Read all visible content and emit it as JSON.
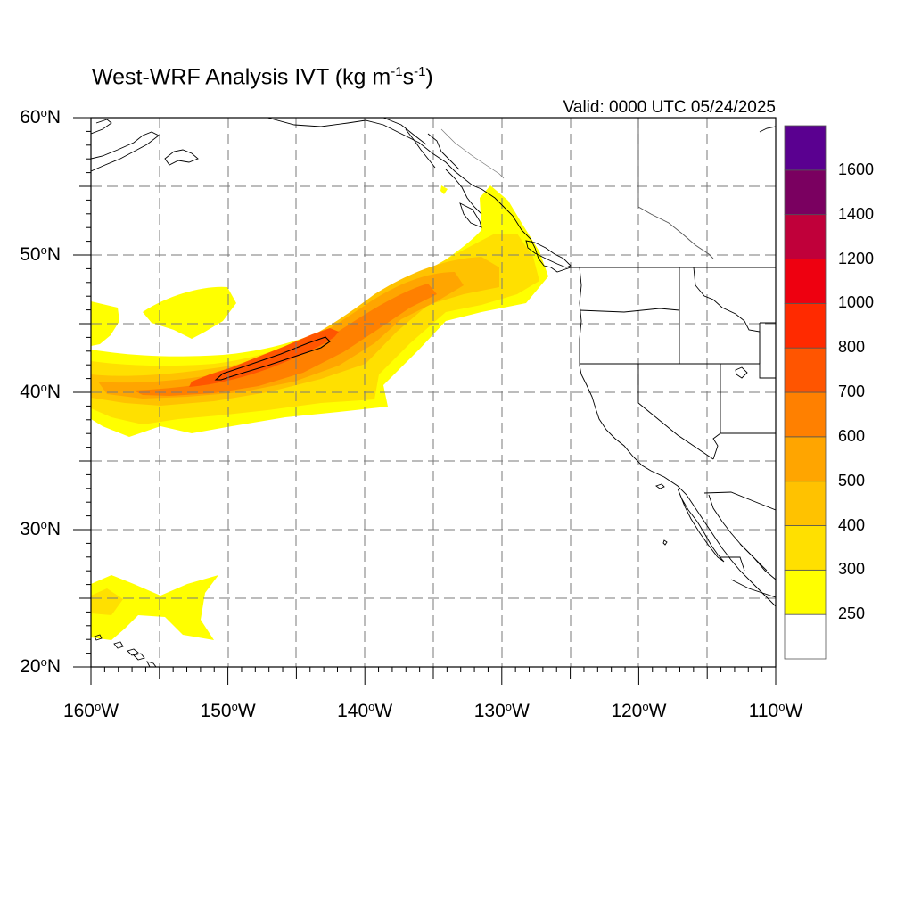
{
  "title": {
    "prefix": "West-WRF Analysis IVT (kg m",
    "exp1": "-1",
    "mid": "s",
    "exp2": "-1",
    "suffix": ")"
  },
  "valid_text": "Valid: 0000 UTC 05/24/2025",
  "degree_symbol": "o",
  "map": {
    "lon_range": [
      -160,
      -110
    ],
    "lat_range": [
      20,
      60
    ],
    "grid_lines": "dashed, every 5 degrees",
    "lat_labels": [
      {
        "value": 60,
        "text": "60",
        "hemi": "N"
      },
      {
        "value": 50,
        "text": "50",
        "hemi": "N"
      },
      {
        "value": 40,
        "text": "40",
        "hemi": "N"
      },
      {
        "value": 30,
        "text": "30",
        "hemi": "N"
      },
      {
        "value": 20,
        "text": "20",
        "hemi": "N"
      }
    ],
    "lon_labels": [
      {
        "value": -160,
        "text": "160",
        "hemi": "W"
      },
      {
        "value": -150,
        "text": "150",
        "hemi": "W"
      },
      {
        "value": -140,
        "text": "140",
        "hemi": "W"
      },
      {
        "value": -130,
        "text": "130",
        "hemi": "W"
      },
      {
        "value": -120,
        "text": "120",
        "hemi": "W"
      },
      {
        "value": -110,
        "text": "110",
        "hemi": "W"
      }
    ]
  },
  "colorbar": {
    "levels": [
      {
        "color": "#ffffff"
      },
      {
        "color": "#ffff00",
        "label": "250"
      },
      {
        "color": "#ffe000",
        "label": "300"
      },
      {
        "color": "#ffc200",
        "label": "400"
      },
      {
        "color": "#ffa500",
        "label": "500"
      },
      {
        "color": "#ff8000",
        "label": "600"
      },
      {
        "color": "#ff5500",
        "label": "700"
      },
      {
        "color": "#ff2a00",
        "label": "800"
      },
      {
        "color": "#ee0010",
        "label": "1000"
      },
      {
        "color": "#c0003a",
        "label": "1200"
      },
      {
        "color": "#7a0060",
        "label": "1400"
      },
      {
        "color": "#5a0090",
        "label": "1600"
      }
    ]
  }
}
